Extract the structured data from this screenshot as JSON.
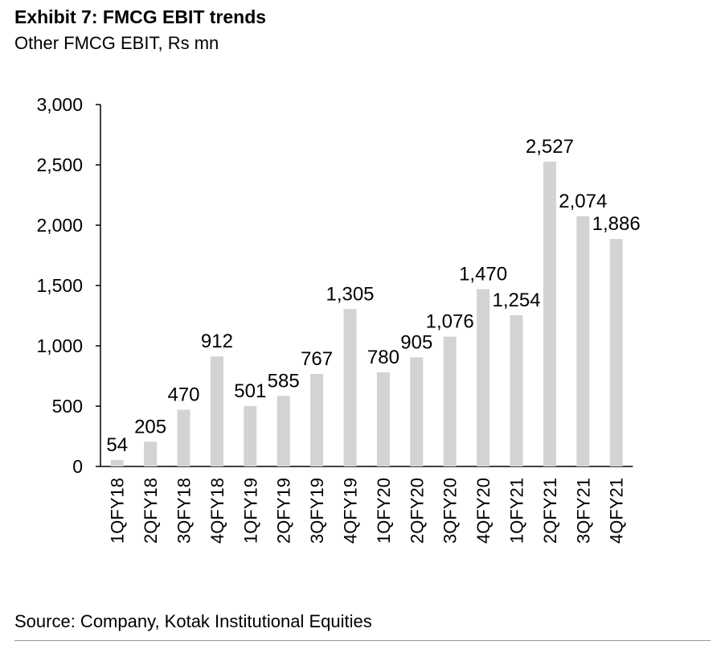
{
  "header": {
    "title": "Exhibit 7: FMCG EBIT trends",
    "subtitle": "Other FMCG EBIT, Rs mn"
  },
  "footer": {
    "source": "Source: Company, Kotak Institutional Equities"
  },
  "colors": {
    "bar": "#d3d3d3",
    "axis": "#000000"
  },
  "chart_data": {
    "type": "bar",
    "title": "Exhibit 7: FMCG EBIT trends",
    "subtitle": "Other FMCG EBIT, Rs mn",
    "categories": [
      "1QFY18",
      "2QFY18",
      "3QFY18",
      "4QFY18",
      "1QFY19",
      "2QFY19",
      "3QFY19",
      "4QFY19",
      "1QFY20",
      "2QFY20",
      "3QFY20",
      "4QFY20",
      "1QFY21",
      "2QFY21",
      "3QFY21",
      "4QFY21"
    ],
    "values": [
      54,
      205,
      470,
      912,
      501,
      585,
      767,
      1305,
      780,
      905,
      1076,
      1470,
      1254,
      2527,
      2074,
      1886
    ],
    "data_labels": [
      "54",
      "205",
      "470",
      "912",
      "501",
      "585",
      "767",
      "1,305",
      "780",
      "905",
      "1,076",
      "1,470",
      "1,254",
      "2,527",
      "2,074",
      "1,886"
    ],
    "yticks": [
      0,
      500,
      1000,
      1500,
      2000,
      2500,
      3000
    ],
    "ytick_labels": [
      "0",
      "500",
      "1,000",
      "1,500",
      "2,000",
      "2,500",
      "3,000"
    ],
    "ylim": [
      0,
      3000
    ],
    "xlabel": "",
    "ylabel": "",
    "grid": false,
    "legend": "none"
  }
}
